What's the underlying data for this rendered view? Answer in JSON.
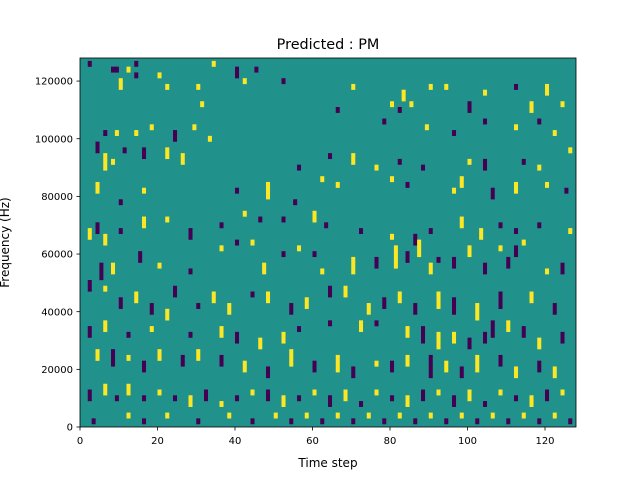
{
  "chart_data": {
    "type": "heatmap",
    "title": "Predicted : PM",
    "xlabel": "Time step",
    "ylabel": "Frequency (Hz)",
    "xlim": [
      0,
      128
    ],
    "ylim": [
      0,
      128000
    ],
    "x_ticks": [
      0,
      20,
      40,
      60,
      80,
      100,
      120
    ],
    "y_ticks": [
      0,
      20000,
      40000,
      60000,
      80000,
      100000,
      120000
    ],
    "x_tick_labels": [
      "0",
      "20",
      "40",
      "60",
      "80",
      "100",
      "120"
    ],
    "y_tick_labels": [
      "0",
      "20000",
      "40000",
      "60000",
      "80000",
      "100000",
      "120000"
    ],
    "grid": false,
    "legend": "none",
    "n_time_steps": 128,
    "n_frequency_bins": 128,
    "bin_height_hz": 1000,
    "background_value": 0,
    "value_levels": [
      -1,
      0,
      1
    ],
    "colors": {
      "-1": "#440154",
      "0": "#21918c",
      "1": "#fde725"
    },
    "cells": [
      [
        2,
        125,
        127,
        -1
      ],
      [
        8,
        123,
        125,
        -1
      ],
      [
        9,
        123,
        125,
        -1
      ],
      [
        12,
        123,
        125,
        1
      ],
      [
        14,
        125,
        127,
        -1
      ],
      [
        14,
        121,
        123,
        -1
      ],
      [
        20,
        121,
        123,
        1
      ],
      [
        34,
        125,
        127,
        1
      ],
      [
        40,
        121,
        125,
        -1
      ],
      [
        42,
        119,
        121,
        1
      ],
      [
        45,
        123,
        125,
        -1
      ],
      [
        52,
        119,
        121,
        -1
      ],
      [
        10,
        117,
        121,
        1
      ],
      [
        22,
        117,
        119,
        1
      ],
      [
        30,
        117,
        119,
        1
      ],
      [
        70,
        117,
        119,
        1
      ],
      [
        80,
        111,
        113,
        1
      ],
      [
        82,
        109,
        111,
        -1
      ],
      [
        83,
        113,
        117,
        1
      ],
      [
        85,
        111,
        113,
        1
      ],
      [
        90,
        117,
        119,
        1
      ],
      [
        94,
        117,
        119,
        1
      ],
      [
        100,
        109,
        113,
        -1
      ],
      [
        104,
        115,
        117,
        1
      ],
      [
        112,
        117,
        119,
        -1
      ],
      [
        116,
        109,
        113,
        1
      ],
      [
        120,
        115,
        119,
        1
      ],
      [
        124,
        111,
        113,
        1
      ],
      [
        6,
        101,
        103,
        -1
      ],
      [
        9,
        101,
        103,
        1
      ],
      [
        14,
        101,
        103,
        1
      ],
      [
        18,
        103,
        105,
        1
      ],
      [
        24,
        99,
        103,
        -1
      ],
      [
        29,
        103,
        105,
        1
      ],
      [
        31,
        111,
        113,
        1
      ],
      [
        66,
        109,
        111,
        -1
      ],
      [
        78,
        105,
        107,
        -1
      ],
      [
        89,
        103,
        105,
        1
      ],
      [
        96,
        101,
        103,
        -1
      ],
      [
        104,
        105,
        107,
        -1
      ],
      [
        112,
        103,
        105,
        1
      ],
      [
        118,
        105,
        107,
        -1
      ],
      [
        122,
        101,
        103,
        1
      ],
      [
        126,
        95,
        97,
        1
      ],
      [
        4,
        95,
        99,
        -1
      ],
      [
        6,
        89,
        95,
        1
      ],
      [
        8,
        91,
        93,
        1
      ],
      [
        11,
        95,
        97,
        -1
      ],
      [
        16,
        93,
        97,
        -1
      ],
      [
        22,
        93,
        97,
        1
      ],
      [
        26,
        91,
        95,
        1
      ],
      [
        33,
        99,
        101,
        1
      ],
      [
        56,
        89,
        91,
        -1
      ],
      [
        64,
        93,
        95,
        -1
      ],
      [
        70,
        91,
        95,
        1
      ],
      [
        76,
        89,
        91,
        1
      ],
      [
        82,
        91,
        93,
        -1
      ],
      [
        88,
        89,
        91,
        -1
      ],
      [
        100,
        91,
        93,
        1
      ],
      [
        104,
        89,
        93,
        -1
      ],
      [
        114,
        91,
        93,
        -1
      ],
      [
        118,
        89,
        91,
        1
      ],
      [
        4,
        81,
        85,
        1
      ],
      [
        10,
        77,
        79,
        -1
      ],
      [
        16,
        81,
        83,
        1
      ],
      [
        40,
        81,
        83,
        -1
      ],
      [
        48,
        79,
        85,
        1
      ],
      [
        55,
        77,
        79,
        -1
      ],
      [
        62,
        85,
        87,
        1
      ],
      [
        66,
        83,
        85,
        1
      ],
      [
        80,
        85,
        87,
        1
      ],
      [
        84,
        83,
        85,
        -1
      ],
      [
        96,
        81,
        83,
        1
      ],
      [
        98,
        83,
        87,
        1
      ],
      [
        106,
        79,
        83,
        -1
      ],
      [
        112,
        81,
        85,
        1
      ],
      [
        120,
        83,
        85,
        1
      ],
      [
        125,
        81,
        83,
        -1
      ],
      [
        2,
        65,
        69,
        1
      ],
      [
        4,
        67,
        71,
        -1
      ],
      [
        6,
        63,
        67,
        1
      ],
      [
        10,
        67,
        69,
        -1
      ],
      [
        16,
        69,
        73,
        1
      ],
      [
        22,
        71,
        73,
        1
      ],
      [
        28,
        65,
        69,
        -1
      ],
      [
        36,
        69,
        71,
        -1
      ],
      [
        42,
        73,
        75,
        1
      ],
      [
        46,
        71,
        73,
        -1
      ],
      [
        52,
        71,
        73,
        -1
      ],
      [
        60,
        71,
        75,
        1
      ],
      [
        63,
        69,
        71,
        -1
      ],
      [
        72,
        67,
        69,
        -1
      ],
      [
        80,
        65,
        67,
        1
      ],
      [
        86,
        63,
        67,
        -1
      ],
      [
        90,
        67,
        69,
        -1
      ],
      [
        98,
        69,
        73,
        1
      ],
      [
        103,
        65,
        69,
        1
      ],
      [
        108,
        69,
        71,
        -1
      ],
      [
        112,
        67,
        69,
        -1
      ],
      [
        118,
        69,
        71,
        -1
      ],
      [
        126,
        67,
        69,
        1
      ],
      [
        5,
        51,
        57,
        -1
      ],
      [
        8,
        53,
        57,
        1
      ],
      [
        15,
        57,
        61,
        -1
      ],
      [
        20,
        55,
        57,
        1
      ],
      [
        28,
        53,
        55,
        -1
      ],
      [
        36,
        61,
        63,
        1
      ],
      [
        40,
        63,
        65,
        -1
      ],
      [
        44,
        63,
        65,
        1
      ],
      [
        47,
        53,
        57,
        1
      ],
      [
        52,
        59,
        61,
        -1
      ],
      [
        56,
        61,
        63,
        1
      ],
      [
        60,
        59,
        61,
        -1
      ],
      [
        62,
        53,
        55,
        1
      ],
      [
        70,
        53,
        59,
        1
      ],
      [
        76,
        55,
        59,
        -1
      ],
      [
        81,
        55,
        63,
        1
      ],
      [
        84,
        57,
        61,
        -1
      ],
      [
        87,
        59,
        65,
        1
      ],
      [
        90,
        53,
        57,
        1
      ],
      [
        92,
        57,
        59,
        -1
      ],
      [
        96,
        55,
        59,
        -1
      ],
      [
        100,
        59,
        63,
        1
      ],
      [
        104,
        53,
        57,
        -1
      ],
      [
        108,
        61,
        63,
        1
      ],
      [
        110,
        55,
        59,
        -1
      ],
      [
        112,
        59,
        63,
        -1
      ],
      [
        114,
        63,
        65,
        1
      ],
      [
        120,
        53,
        55,
        1
      ],
      [
        124,
        53,
        57,
        -1
      ],
      [
        2,
        47,
        51,
        -1
      ],
      [
        6,
        47,
        49,
        1
      ],
      [
        10,
        41,
        45,
        -1
      ],
      [
        14,
        43,
        47,
        1
      ],
      [
        18,
        39,
        43,
        -1
      ],
      [
        22,
        37,
        41,
        1
      ],
      [
        24,
        45,
        49,
        -1
      ],
      [
        30,
        41,
        43,
        -1
      ],
      [
        34,
        43,
        47,
        1
      ],
      [
        38,
        39,
        43,
        1
      ],
      [
        44,
        45,
        47,
        -1
      ],
      [
        48,
        43,
        47,
        1
      ],
      [
        54,
        39,
        43,
        -1
      ],
      [
        58,
        41,
        45,
        1
      ],
      [
        64,
        45,
        49,
        -1
      ],
      [
        68,
        45,
        49,
        1
      ],
      [
        74,
        39,
        43,
        1
      ],
      [
        78,
        41,
        45,
        -1
      ],
      [
        82,
        43,
        47,
        1
      ],
      [
        86,
        39,
        43,
        -1
      ],
      [
        92,
        41,
        47,
        1
      ],
      [
        96,
        39,
        45,
        -1
      ],
      [
        102,
        37,
        43,
        1
      ],
      [
        108,
        41,
        47,
        -1
      ],
      [
        116,
        43,
        47,
        1
      ],
      [
        122,
        39,
        43,
        -1
      ],
      [
        2,
        31,
        35,
        -1
      ],
      [
        6,
        33,
        37,
        1
      ],
      [
        12,
        31,
        33,
        -1
      ],
      [
        18,
        33,
        35,
        1
      ],
      [
        28,
        31,
        33,
        -1
      ],
      [
        36,
        31,
        35,
        1
      ],
      [
        40,
        29,
        33,
        -1
      ],
      [
        46,
        27,
        31,
        1
      ],
      [
        52,
        29,
        33,
        1
      ],
      [
        56,
        33,
        35,
        -1
      ],
      [
        64,
        35,
        37,
        -1
      ],
      [
        72,
        33,
        37,
        1
      ],
      [
        76,
        35,
        37,
        -1
      ],
      [
        84,
        31,
        35,
        1
      ],
      [
        88,
        29,
        35,
        -1
      ],
      [
        92,
        27,
        33,
        1
      ],
      [
        96,
        29,
        33,
        1
      ],
      [
        100,
        27,
        31,
        -1
      ],
      [
        104,
        29,
        33,
        -1
      ],
      [
        106,
        31,
        37,
        -1
      ],
      [
        110,
        33,
        37,
        1
      ],
      [
        114,
        31,
        35,
        -1
      ],
      [
        118,
        27,
        31,
        1
      ],
      [
        124,
        29,
        33,
        -1
      ],
      [
        4,
        23,
        27,
        1
      ],
      [
        8,
        21,
        27,
        -1
      ],
      [
        12,
        23,
        25,
        1
      ],
      [
        16,
        19,
        23,
        -1
      ],
      [
        20,
        23,
        27,
        1
      ],
      [
        26,
        21,
        25,
        -1
      ],
      [
        30,
        23,
        27,
        1
      ],
      [
        36,
        21,
        25,
        -1
      ],
      [
        42,
        19,
        23,
        1
      ],
      [
        48,
        17,
        21,
        -1
      ],
      [
        54,
        21,
        27,
        1
      ],
      [
        60,
        19,
        23,
        -1
      ],
      [
        66,
        19,
        25,
        1
      ],
      [
        70,
        17,
        21,
        -1
      ],
      [
        76,
        21,
        23,
        1
      ],
      [
        80,
        19,
        23,
        -1
      ],
      [
        84,
        21,
        25,
        1
      ],
      [
        90,
        17,
        25,
        -1
      ],
      [
        94,
        19,
        23,
        1
      ],
      [
        98,
        17,
        21,
        -1
      ],
      [
        102,
        19,
        25,
        1
      ],
      [
        108,
        21,
        25,
        -1
      ],
      [
        112,
        17,
        21,
        1
      ],
      [
        118,
        19,
        23,
        -1
      ],
      [
        122,
        17,
        21,
        1
      ],
      [
        2,
        9,
        13,
        -1
      ],
      [
        6,
        11,
        15,
        1
      ],
      [
        9,
        9,
        11,
        -1
      ],
      [
        12,
        11,
        15,
        1
      ],
      [
        16,
        9,
        11,
        -1
      ],
      [
        20,
        11,
        13,
        1
      ],
      [
        24,
        9,
        11,
        -1
      ],
      [
        28,
        7,
        11,
        1
      ],
      [
        32,
        9,
        13,
        -1
      ],
      [
        36,
        7,
        9,
        1
      ],
      [
        40,
        9,
        11,
        -1
      ],
      [
        44,
        11,
        13,
        1
      ],
      [
        48,
        9,
        13,
        -1
      ],
      [
        52,
        7,
        11,
        1
      ],
      [
        56,
        9,
        11,
        -1
      ],
      [
        60,
        11,
        13,
        1
      ],
      [
        64,
        7,
        11,
        -1
      ],
      [
        68,
        9,
        13,
        1
      ],
      [
        72,
        7,
        9,
        -1
      ],
      [
        76,
        11,
        13,
        1
      ],
      [
        80,
        9,
        11,
        -1
      ],
      [
        84,
        7,
        11,
        1
      ],
      [
        88,
        9,
        13,
        -1
      ],
      [
        92,
        11,
        13,
        1
      ],
      [
        96,
        7,
        11,
        -1
      ],
      [
        100,
        9,
        13,
        1
      ],
      [
        104,
        7,
        9,
        -1
      ],
      [
        108,
        11,
        13,
        1
      ],
      [
        112,
        9,
        11,
        -1
      ],
      [
        116,
        7,
        11,
        1
      ],
      [
        120,
        9,
        13,
        -1
      ],
      [
        124,
        11,
        13,
        1
      ],
      [
        3,
        1,
        3,
        -1
      ],
      [
        12,
        3,
        5,
        1
      ],
      [
        16,
        1,
        3,
        -1
      ],
      [
        22,
        3,
        5,
        1
      ],
      [
        30,
        1,
        3,
        -1
      ],
      [
        38,
        3,
        5,
        1
      ],
      [
        44,
        1,
        3,
        -1
      ],
      [
        50,
        3,
        5,
        1
      ],
      [
        54,
        1,
        3,
        -1
      ],
      [
        58,
        3,
        5,
        1
      ],
      [
        62,
        1,
        3,
        -1
      ],
      [
        66,
        3,
        5,
        1
      ],
      [
        70,
        1,
        3,
        -1
      ],
      [
        74,
        3,
        5,
        1
      ],
      [
        78,
        1,
        3,
        -1
      ],
      [
        82,
        3,
        5,
        1
      ],
      [
        86,
        1,
        3,
        -1
      ],
      [
        90,
        3,
        5,
        1
      ],
      [
        94,
        1,
        3,
        -1
      ],
      [
        98,
        3,
        5,
        1
      ],
      [
        102,
        1,
        3,
        -1
      ],
      [
        106,
        3,
        5,
        1
      ],
      [
        110,
        1,
        3,
        -1
      ],
      [
        114,
        3,
        5,
        1
      ],
      [
        118,
        1,
        3,
        -1
      ],
      [
        122,
        3,
        5,
        1
      ],
      [
        126,
        1,
        3,
        -1
      ]
    ]
  }
}
